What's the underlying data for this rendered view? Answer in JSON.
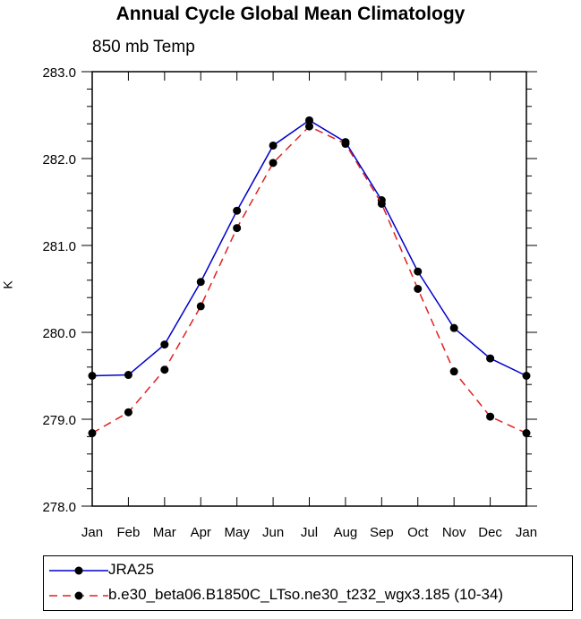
{
  "chart_data": {
    "type": "line",
    "title": "Annual Cycle Global Mean Climatology",
    "subtitle": "850 mb Temp",
    "ylabel": "K",
    "xlabel": "",
    "ylim": [
      278.0,
      283.0
    ],
    "yticks": [
      "278.0",
      "279.0",
      "280.0",
      "281.0",
      "282.0",
      "283.0"
    ],
    "categories": [
      "Jan",
      "Feb",
      "Mar",
      "Apr",
      "May",
      "Jun",
      "Jul",
      "Aug",
      "Sep",
      "Oct",
      "Nov",
      "Dec",
      "Jan"
    ],
    "series": [
      {
        "name": "JRA25",
        "color": "#0000cc",
        "dash": "solid",
        "values": [
          279.5,
          279.51,
          279.86,
          280.58,
          281.4,
          282.15,
          282.44,
          282.19,
          281.52,
          280.7,
          280.05,
          279.7,
          279.5
        ]
      },
      {
        "name": "b.e30_beta06.B1850C_LTso.ne30_t232_wgx3.185 (10-34)",
        "color": "#e02020",
        "dash": "dashed",
        "values": [
          278.84,
          279.08,
          279.57,
          280.3,
          281.2,
          281.95,
          282.37,
          282.17,
          281.48,
          280.5,
          279.55,
          279.03,
          278.84
        ]
      }
    ],
    "legend": "bottom",
    "grid": false
  }
}
